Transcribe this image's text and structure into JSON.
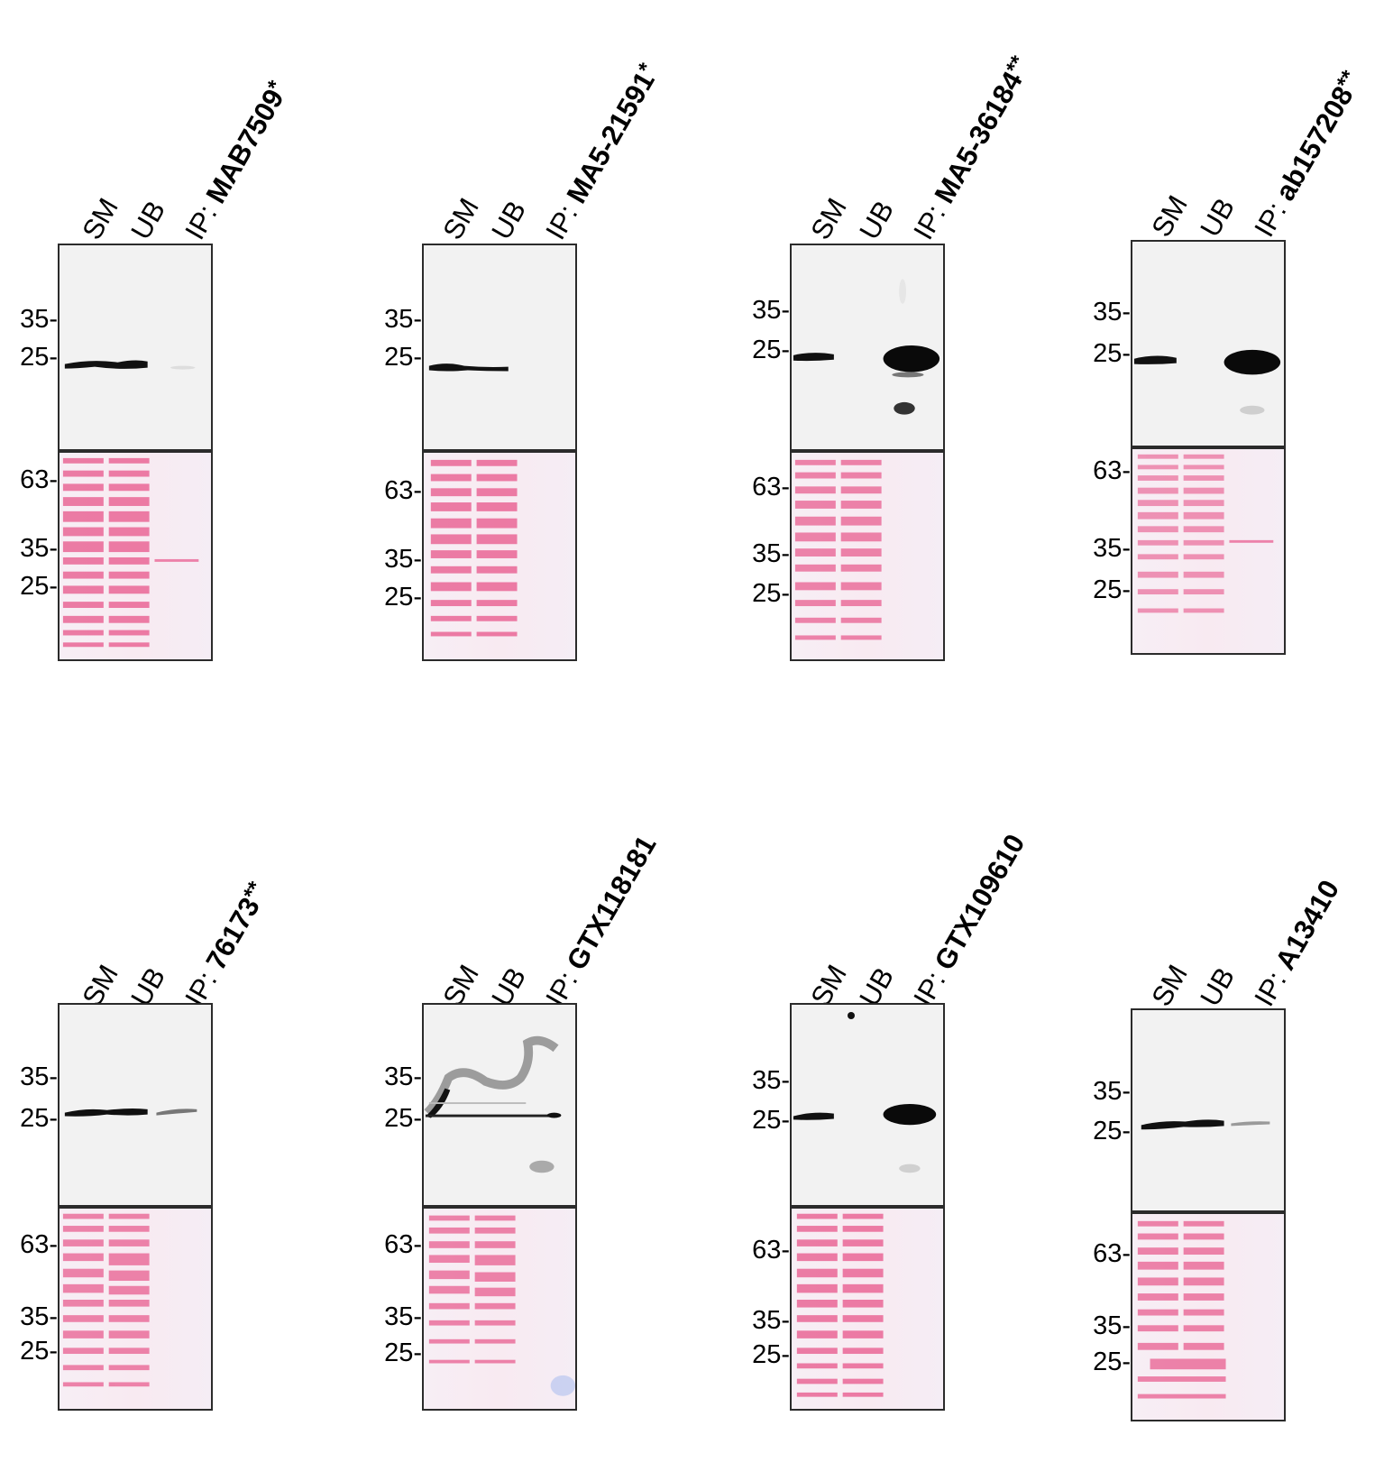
{
  "lanes": [
    "SM",
    "UB",
    "IP:"
  ],
  "panels": [
    {
      "antibody": "MAB7509",
      "asterisks": "*",
      "wb_markers": [
        "35-",
        "25-"
      ],
      "ps_markers": [
        "63-",
        "35-",
        "25-"
      ]
    },
    {
      "antibody": "MA5-21591",
      "asterisks": "*",
      "wb_markers": [
        "35-",
        "25-"
      ],
      "ps_markers": [
        "63-",
        "35-",
        "25-"
      ]
    },
    {
      "antibody": "MA5-36184",
      "asterisks": "**",
      "wb_markers": [
        "35-",
        "25-"
      ],
      "ps_markers": [
        "63-",
        "35-",
        "25-"
      ]
    },
    {
      "antibody": "ab157208",
      "asterisks": "**",
      "wb_markers": [
        "35-",
        "25-"
      ],
      "ps_markers": [
        "63-",
        "35-",
        "25-"
      ]
    },
    {
      "antibody": "76173",
      "asterisks": "**",
      "wb_markers": [
        "35-",
        "25-"
      ],
      "ps_markers": [
        "63-",
        "35-",
        "25-"
      ]
    },
    {
      "antibody": "GTX118181",
      "asterisks": "",
      "wb_markers": [
        "35-",
        "25-"
      ],
      "ps_markers": [
        "63-",
        "35-",
        "25-"
      ]
    },
    {
      "antibody": "GTX109610",
      "asterisks": "",
      "wb_markers": [
        "35-",
        "25-"
      ],
      "ps_markers": [
        "63-",
        "35-",
        "25-"
      ]
    },
    {
      "antibody": "A13410",
      "asterisks": "",
      "wb_markers": [
        "35-",
        "25-"
      ],
      "ps_markers": [
        "63-",
        "35-",
        "25-"
      ]
    }
  ],
  "colors": {
    "frame": "#2b2b2b",
    "band": "#111111",
    "ponceau": "#e8558a",
    "membrane": "#f2f2f2"
  }
}
